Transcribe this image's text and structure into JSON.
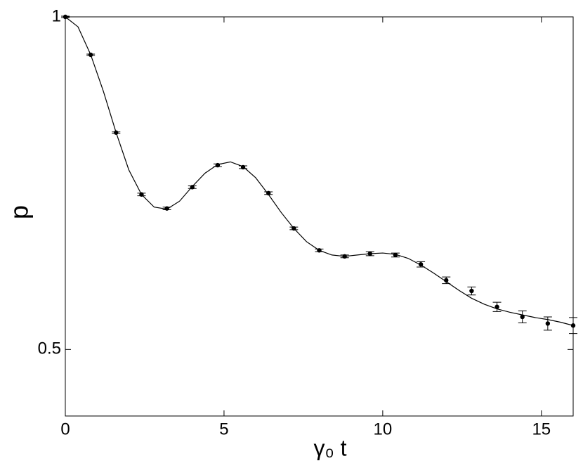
{
  "chart_data": {
    "type": "scatter",
    "x_label": "γ₀ t",
    "y_label": "p",
    "xlim": [
      0,
      16
    ],
    "ylim": [
      0.4,
      1
    ],
    "xticks": [
      0,
      5,
      10,
      15
    ],
    "yticks": [
      0.5,
      1
    ],
    "grid": false,
    "series": [
      {
        "type": "line",
        "color": "#000000",
        "x": [
          0,
          0.4,
          0.8,
          1.2,
          1.6,
          2.0,
          2.4,
          2.8,
          3.2,
          3.6,
          4.0,
          4.4,
          4.8,
          5.2,
          5.6,
          6.0,
          6.4,
          6.8,
          7.2,
          7.6,
          8.0,
          8.4,
          8.8,
          9.2,
          9.6,
          10.0,
          10.4,
          10.8,
          11.2,
          11.6,
          12.0,
          12.4,
          12.8,
          13.2,
          13.6,
          14.0,
          14.4,
          14.8,
          15.2,
          15.6,
          16.0
        ],
        "values": [
          1.0,
          0.985,
          0.943,
          0.888,
          0.826,
          0.77,
          0.733,
          0.714,
          0.711,
          0.723,
          0.745,
          0.765,
          0.778,
          0.782,
          0.775,
          0.758,
          0.733,
          0.706,
          0.682,
          0.662,
          0.649,
          0.642,
          0.64,
          0.642,
          0.644,
          0.645,
          0.643,
          0.637,
          0.627,
          0.615,
          0.602,
          0.589,
          0.577,
          0.568,
          0.561,
          0.556,
          0.552,
          0.548,
          0.545,
          0.541,
          0.536
        ]
      },
      {
        "type": "scatter",
        "color": "#000000",
        "x": [
          0,
          0.8,
          1.6,
          2.4,
          3.2,
          4.0,
          4.8,
          5.6,
          6.4,
          7.2,
          8.0,
          8.8,
          9.6,
          10.4,
          11.2,
          12.0,
          12.8,
          13.6,
          14.4,
          15.2,
          16.0
        ],
        "values": [
          1.0,
          0.943,
          0.826,
          0.733,
          0.712,
          0.744,
          0.777,
          0.774,
          0.735,
          0.682,
          0.649,
          0.64,
          0.644,
          0.642,
          0.628,
          0.604,
          0.588,
          0.564,
          0.549,
          0.539,
          0.536
        ],
        "errors": [
          0.001,
          0.001,
          0.001,
          0.002,
          0.002,
          0.002,
          0.002,
          0.002,
          0.002,
          0.002,
          0.002,
          0.002,
          0.003,
          0.003,
          0.004,
          0.005,
          0.006,
          0.007,
          0.009,
          0.01,
          0.012
        ]
      }
    ]
  }
}
